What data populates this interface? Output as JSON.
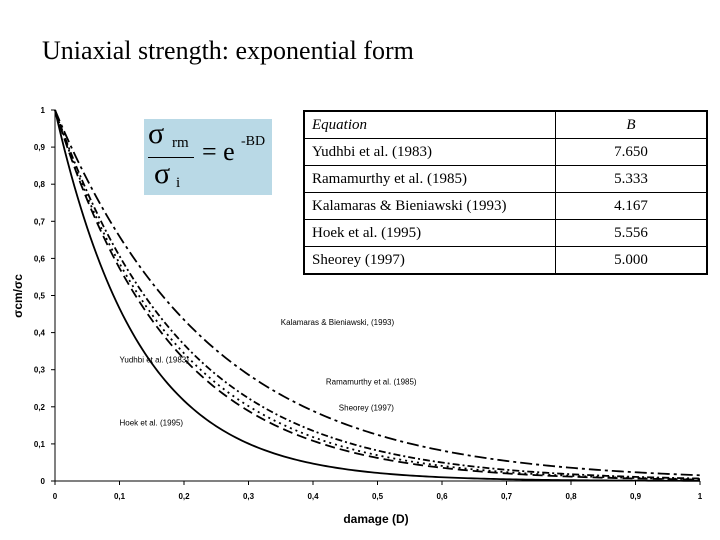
{
  "slide": {
    "title": "Uniaxial strength: exponential form"
  },
  "formula": {
    "numerator": "σ",
    "numerator_sub": "rm",
    "denominator": "σ",
    "denominator_sub": "i",
    "rhs": "= e",
    "exponent": "-BD"
  },
  "table": {
    "headers": [
      "Equation",
      "B"
    ],
    "rows": [
      {
        "equation": "Yudhbi et al. (1983)",
        "b": "7.650"
      },
      {
        "equation": "Ramamurthy et al. (1985)",
        "b": "5.333"
      },
      {
        "equation": "Kalamaras & Bieniawski  (1993)",
        "b": "4.167"
      },
      {
        "equation": "Hoek et al.  (1995)",
        "b": "5.556"
      },
      {
        "equation": "Sheorey  (1997)",
        "b": "5.000"
      }
    ]
  },
  "chart_data": {
    "type": "line",
    "title": "",
    "xlabel": "damage (D)",
    "ylabel": "σcm/σc",
    "xlim": [
      0,
      1
    ],
    "ylim": [
      0,
      1
    ],
    "x_ticks": [
      "0",
      "0,1",
      "0,2",
      "0,3",
      "0,4",
      "0,5",
      "0,6",
      "0,7",
      "0,8",
      "0,9",
      "1"
    ],
    "y_ticks": [
      "0",
      "0,1",
      "0,2",
      "0,3",
      "0,4",
      "0,5",
      "0,6",
      "0,7",
      "0,8",
      "0,9",
      "1"
    ],
    "grid": false,
    "series": [
      {
        "name": "Yudhbi et al. (1983)",
        "b": 7.65,
        "style": "solid",
        "label_x": 0.1,
        "label_y": 0.32
      },
      {
        "name": "Hoek et al. (1995)",
        "b": 5.556,
        "style": "dash",
        "label_x": 0.1,
        "label_y": 0.15
      },
      {
        "name": "Ramamurthy et al. (1985)",
        "b": 5.333,
        "style": "dot",
        "label_x": 0.42,
        "label_y": 0.26
      },
      {
        "name": "Sheorey (1997)",
        "b": 5.0,
        "style": "dashdot-fine",
        "label_x": 0.44,
        "label_y": 0.19
      },
      {
        "name": "Kalamaras & Bieniawski, (1993)",
        "b": 4.167,
        "style": "dashdot",
        "label_x": 0.35,
        "label_y": 0.42
      }
    ],
    "annotations": [
      "Kalamaras & Bieniawski, (1993)",
      "Yudhbi et al. (1983)",
      "Ramamurthy et al. (1985)",
      "Sheorey (1997)",
      "Hoek et al. (1995)"
    ]
  }
}
